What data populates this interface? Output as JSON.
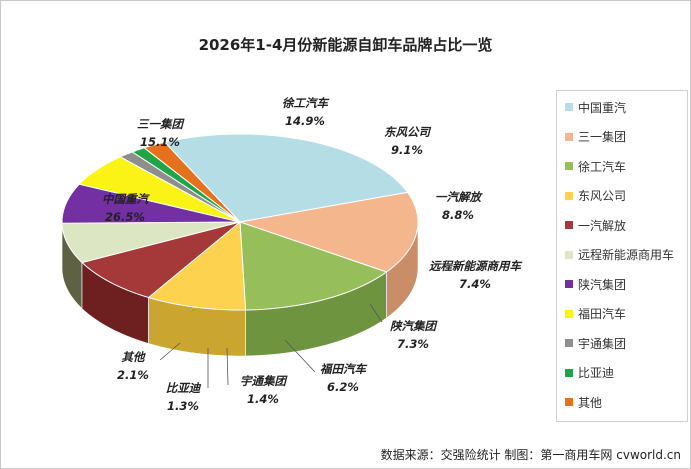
{
  "chart_data": {
    "type": "pie",
    "title": "2026年1-4月份新能源自卸车品牌占比一览",
    "slices": [
      {
        "name": "中国重汽",
        "value": 26.5,
        "label": "26.5%",
        "color": "#b5dde6",
        "side": "#8fb4c0"
      },
      {
        "name": "三一集团",
        "value": 15.1,
        "label": "15.1%",
        "color": "#f3b68d",
        "side": "#c98d68"
      },
      {
        "name": "徐工汽车",
        "value": 14.9,
        "label": "14.9%",
        "color": "#96bf5b",
        "side": "#6f9440"
      },
      {
        "name": "东风公司",
        "value": 9.1,
        "label": "9.1%",
        "color": "#fcd24f",
        "side": "#caa530"
      },
      {
        "name": "一汽解放",
        "value": 8.8,
        "label": "8.8%",
        "color": "#a53838",
        "side": "#6e1f1f"
      },
      {
        "name": "远程新能源商用车",
        "value": 7.4,
        "label": "7.4%",
        "color": "#dde6c3",
        "side": "#5e6242"
      },
      {
        "name": "陕汽集团",
        "value": 7.3,
        "label": "7.3%",
        "color": "#7230a2",
        "side": "#3b1a52"
      },
      {
        "name": "福田汽车",
        "value": 6.2,
        "label": "6.2%",
        "color": "#fbf315",
        "side": "#a9a020"
      },
      {
        "name": "宇通集团",
        "value": 1.4,
        "label": "1.4%",
        "color": "#8e8e8e",
        "side": "#555555"
      },
      {
        "name": "比亚迪",
        "value": 1.3,
        "label": "1.3%",
        "color": "#20a448",
        "side": "#136b2e"
      },
      {
        "name": "其他",
        "value": 2.1,
        "label": "2.1%",
        "color": "#e3711d",
        "side": "#a3521a"
      }
    ],
    "legend_position": "right"
  },
  "footer": {
    "source_text": "数据来源：交强险统计  制图：第一商用车网 cvworld.cn"
  }
}
